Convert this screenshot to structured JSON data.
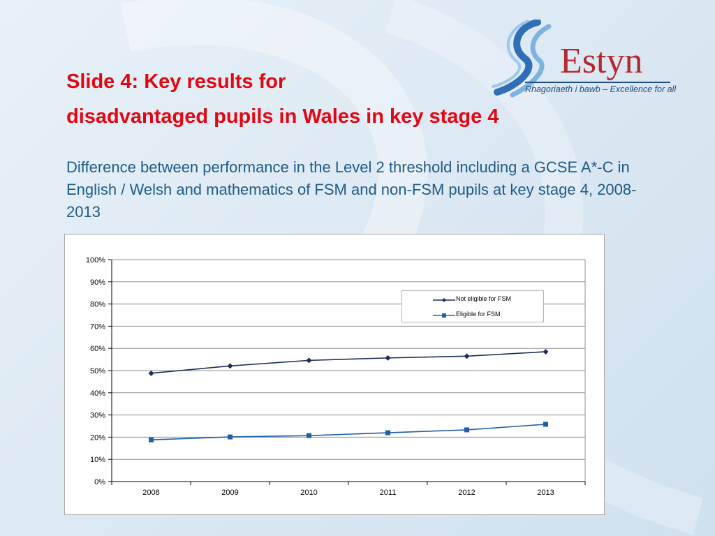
{
  "slide": {
    "title_line1": "Slide 4:  Key results for",
    "title_line2": "disadvantaged pupils in Wales in key stage 4",
    "subtitle": "Difference between performance in the Level 2 threshold including a GCSE A*-C in English / Welsh and mathematics of FSM and non-FSM pupils at key stage 4, 2008-2013"
  },
  "logo": {
    "wordmark": "Estyn",
    "tagline": "Rhagoriaeth i bawb – Excellence for all",
    "icon": "estyn-swirl-icon"
  },
  "colors": {
    "title": "#e30613",
    "subtitle": "#1f5b8a",
    "series_not_eligible": "#1a2f5a",
    "series_eligible": "#1f5fa8"
  },
  "chart_data": {
    "type": "line",
    "title": "",
    "xlabel": "",
    "ylabel": "",
    "categories": [
      "2008",
      "2009",
      "2010",
      "2011",
      "2012",
      "2013"
    ],
    "series": [
      {
        "name": "Not eligible for FSM",
        "values": [
          48.8,
          52.1,
          54.6,
          55.7,
          56.5,
          58.5
        ],
        "marker": "diamond",
        "color": "#1a2f5a"
      },
      {
        "name": "Eligible for FSM",
        "values": [
          18.8,
          20.1,
          20.7,
          22.0,
          23.3,
          25.8
        ],
        "marker": "square",
        "color": "#1f5fa8"
      }
    ],
    "ylim": [
      0,
      100
    ],
    "yticks": [
      "0%",
      "10%",
      "20%",
      "30%",
      "40%",
      "50%",
      "60%",
      "70%",
      "80%",
      "90%",
      "100%"
    ],
    "grid": "horizontal",
    "legend_position": "top-right"
  }
}
